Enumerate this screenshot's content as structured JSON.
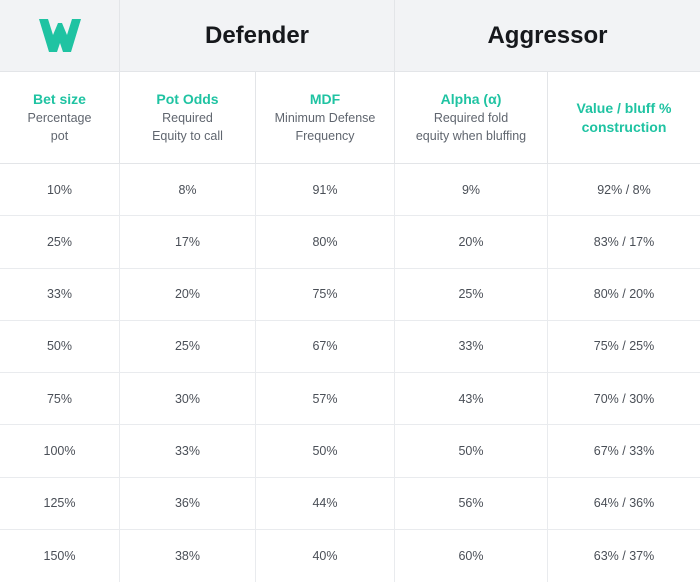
{
  "brand": {
    "logo_icon": "w-logo-icon",
    "accent_color": "#1fc3a2"
  },
  "groups": {
    "defender": "Defender",
    "aggressor": "Aggressor"
  },
  "columns": [
    {
      "title": "Bet size",
      "sub1": "Percentage",
      "sub2": "pot"
    },
    {
      "title": "Pot Odds",
      "sub1": "Required",
      "sub2": "Equity to call"
    },
    {
      "title": "MDF",
      "sub1": "Minimum Defense",
      "sub2": "Frequency"
    },
    {
      "title": "Alpha (α)",
      "sub1": "Required fold",
      "sub2": "equity when bluffing"
    },
    {
      "title": "Value / bluff %",
      "title2": "construction"
    }
  ],
  "rows": [
    [
      "10%",
      "8%",
      "91%",
      "9%",
      "92% / 8%"
    ],
    [
      "25%",
      "17%",
      "80%",
      "20%",
      "83% / 17%"
    ],
    [
      "33%",
      "20%",
      "75%",
      "25%",
      "80% / 20%"
    ],
    [
      "50%",
      "25%",
      "67%",
      "33%",
      "75% / 25%"
    ],
    [
      "75%",
      "30%",
      "57%",
      "43%",
      "70% / 30%"
    ],
    [
      "100%",
      "33%",
      "50%",
      "50%",
      "67% / 33%"
    ],
    [
      "125%",
      "36%",
      "44%",
      "56%",
      "64% / 36%"
    ],
    [
      "150%",
      "38%",
      "40%",
      "60%",
      "63% / 37%"
    ]
  ]
}
